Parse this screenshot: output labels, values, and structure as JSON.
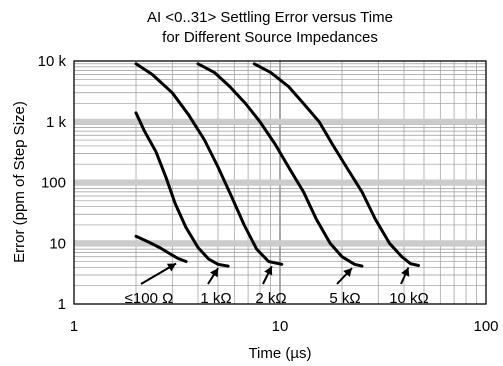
{
  "chart_data": {
    "type": "line",
    "title": "AI <0..31> Settling Error versus Time",
    "subtitle": "for Different Source Impedances",
    "xlabel": "Time (µs)",
    "ylabel": "Error (ppm of Step Size)",
    "xscale": "log",
    "yscale": "log",
    "xlim": [
      1,
      100
    ],
    "ylim": [
      1,
      10000
    ],
    "x_ticks": [
      {
        "value": 1,
        "label": "1"
      },
      {
        "value": 10,
        "label": "10"
      },
      {
        "value": 100,
        "label": "100"
      }
    ],
    "y_ticks": [
      {
        "value": 1,
        "label": "1"
      },
      {
        "value": 10,
        "label": "10"
      },
      {
        "value": 100,
        "label": "100"
      },
      {
        "value": 1000,
        "label": "1 k"
      },
      {
        "value": 10000,
        "label": "10 k"
      }
    ],
    "grid": true,
    "series": [
      {
        "name": "≤100 Ω",
        "x": [
          2.0,
          2.3,
          2.6,
          2.9,
          3.2,
          3.5
        ],
        "y": [
          13,
          10.5,
          8.5,
          6.8,
          5.6,
          5.0
        ]
      },
      {
        "name": "1 kΩ",
        "x": [
          2.0,
          2.2,
          2.5,
          2.8,
          3.1,
          3.5,
          4.0,
          4.5,
          5.0,
          5.6
        ],
        "y": [
          1400,
          700,
          320,
          120,
          45,
          18,
          8.5,
          5.5,
          4.5,
          4.2
        ]
      },
      {
        "name": "2 kΩ",
        "x": [
          2.0,
          2.4,
          3.0,
          3.6,
          4.3,
          5.0,
          5.8,
          6.7,
          7.7,
          8.8,
          10.2
        ],
        "y": [
          9000,
          6000,
          3000,
          1300,
          500,
          180,
          60,
          20,
          8,
          5,
          4.5
        ]
      },
      {
        "name": "5 kΩ",
        "x": [
          4.0,
          4.8,
          5.7,
          6.8,
          8.0,
          9.5,
          11.0,
          13.0,
          15.0,
          17.5,
          20.0,
          23.0,
          25.0
        ],
        "y": [
          9000,
          6500,
          3800,
          2000,
          1000,
          420,
          180,
          70,
          25,
          10,
          6,
          4.5,
          4.2
        ]
      },
      {
        "name": "10 kΩ",
        "x": [
          7.5,
          9.0,
          11.0,
          13.0,
          15.5,
          18.0,
          21.0,
          25.0,
          29.0,
          34.0,
          39.0,
          43.0,
          47.0
        ],
        "y": [
          9000,
          6500,
          3800,
          2000,
          1000,
          420,
          180,
          70,
          25,
          10,
          6,
          4.6,
          4.3
        ]
      }
    ]
  }
}
